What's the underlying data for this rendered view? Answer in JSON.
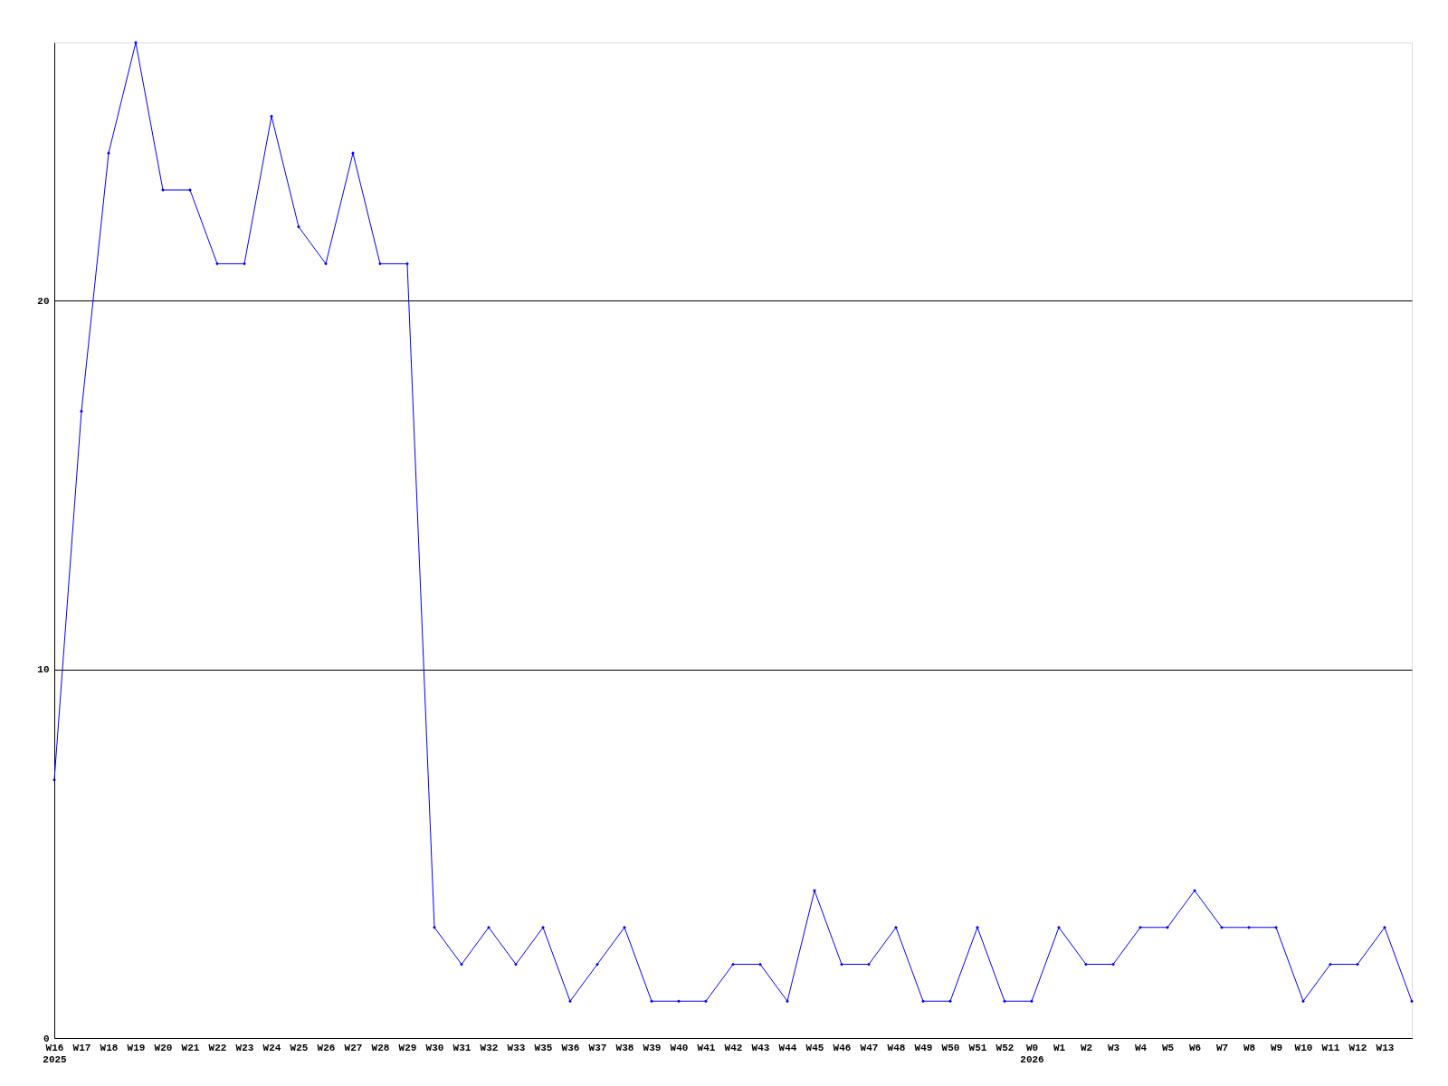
{
  "chart_data": {
    "type": "line",
    "categories": [
      "W16\n2025",
      "W17",
      "W18",
      "W19",
      "W20",
      "W21",
      "W22",
      "W23",
      "W24",
      "W25",
      "W26",
      "W27",
      "W28",
      "W29",
      "W30",
      "W31",
      "W32",
      "W33",
      "W35",
      "W36",
      "W37",
      "W38",
      "W39",
      "W40",
      "W41",
      "W42",
      "W43",
      "W44",
      "W45",
      "W46",
      "W47",
      "W48",
      "W49",
      "W50",
      "W51",
      "W52",
      "W0\n2026",
      "W1",
      "W2",
      "W3",
      "W4",
      "W5",
      "W6",
      "W7",
      "W8",
      "W9",
      "W10",
      "W11",
      "W12",
      "W13",
      null
    ],
    "series": [
      {
        "color": "#0000ff",
        "values": [
          7,
          17,
          24,
          27,
          23,
          23,
          21,
          21,
          25,
          22,
          21,
          24,
          21,
          21,
          3,
          2,
          3,
          2,
          3,
          1,
          2,
          3,
          1,
          1,
          1,
          2,
          2,
          1,
          4,
          2,
          2,
          3,
          1,
          1,
          3,
          1,
          1,
          3,
          2,
          2,
          3,
          3,
          4,
          3,
          3,
          3,
          1,
          2,
          2,
          3,
          1
        ]
      }
    ],
    "ylim": [
      0,
      27
    ],
    "yticks": [
      0,
      10,
      20
    ],
    "grid": "y",
    "marker": "diamond",
    "line_style": "solid"
  }
}
